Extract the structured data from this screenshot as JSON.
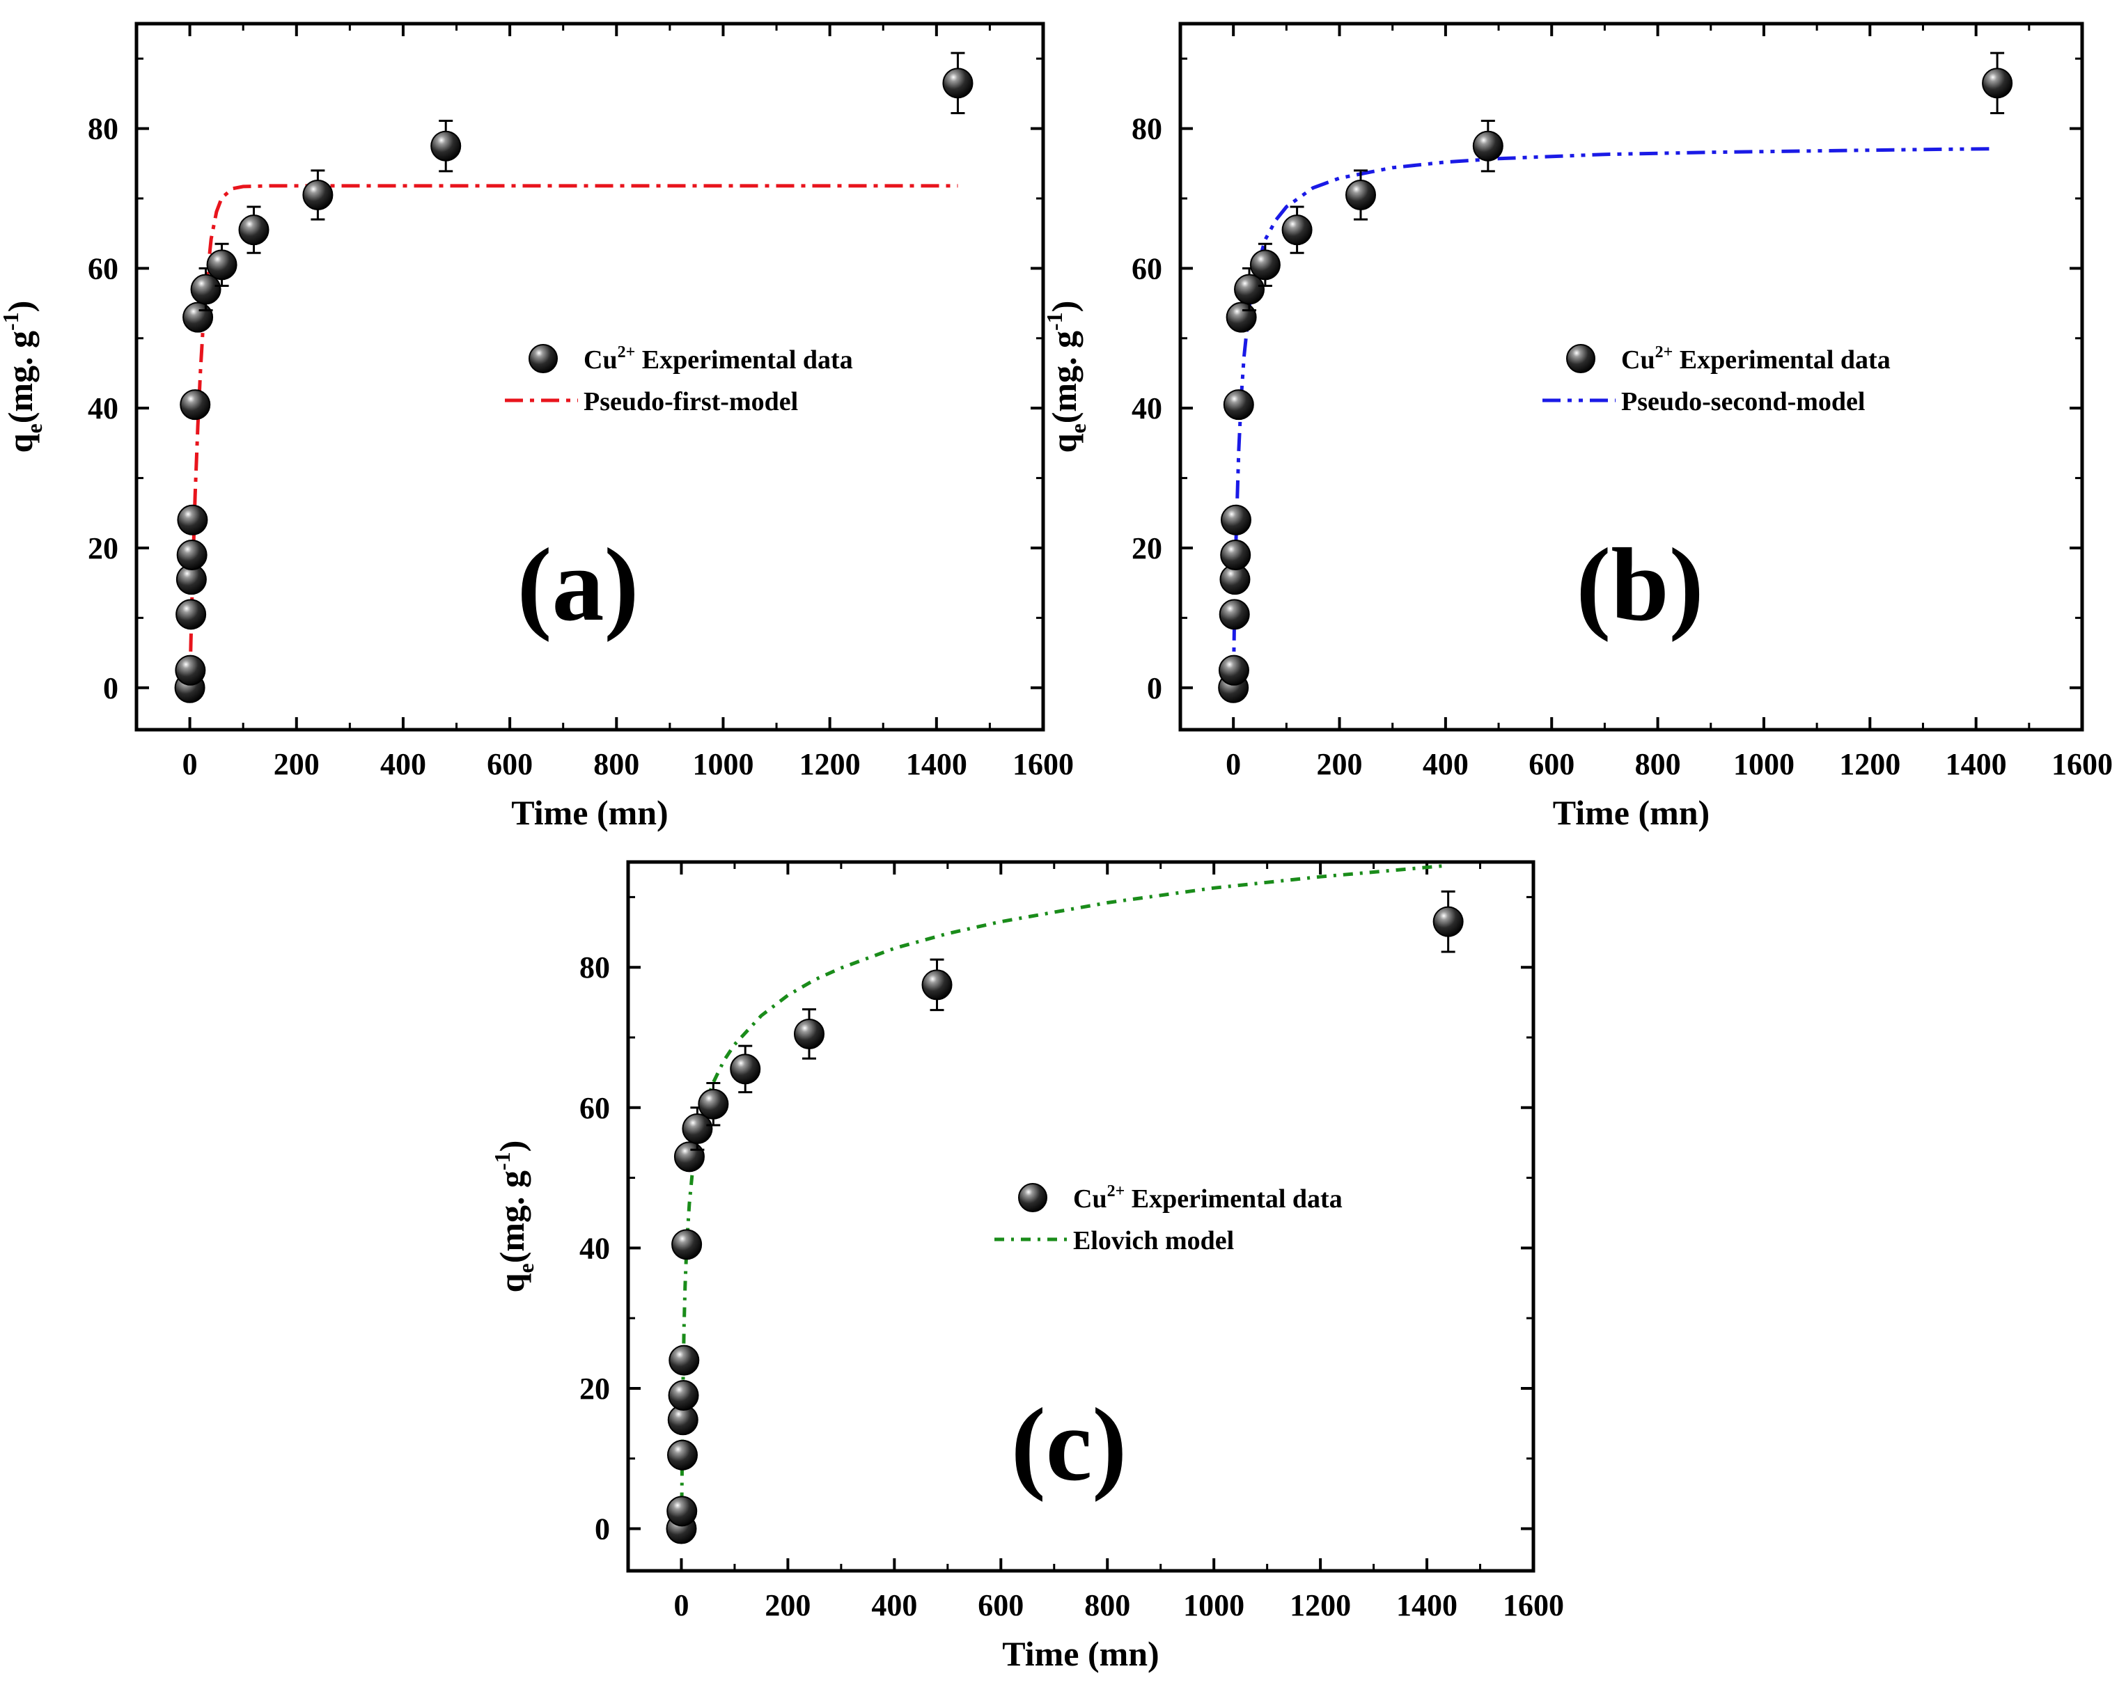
{
  "colors": {
    "fit_a": "#e8141c",
    "fit_b": "#1a1ae6",
    "fit_c": "#1a8c1a",
    "axis": "#000000",
    "marker": "#111111"
  },
  "chart_data": [
    {
      "type": "scatter",
      "panel_label": "(a)",
      "xlabel": "Time (mn)",
      "ylabel_main": "q",
      "ylabel_sub": "e",
      "ylabel_rest": "(mg. g",
      "ylabel_sup": "-1",
      "ylabel_close": ")",
      "xlim": [
        -100,
        1600
      ],
      "ylim": [
        -6,
        95
      ],
      "xticks": [
        0,
        200,
        400,
        600,
        800,
        1000,
        1200,
        1400,
        1600
      ],
      "yticks": [
        0,
        20,
        40,
        60,
        80
      ],
      "legend": {
        "scatter_label_main": "Cu",
        "scatter_label_sup": "2+",
        "scatter_label_rest": " Experimental data",
        "fit_label": "Pseudo-first-model"
      },
      "experimental": {
        "x": [
          0,
          1,
          2,
          3,
          4,
          5,
          10,
          15,
          30,
          60,
          120,
          240,
          480,
          1440
        ],
        "y": [
          0,
          2.5,
          10.5,
          15.5,
          19,
          24,
          40.5,
          53,
          57,
          60.5,
          65.5,
          70.5,
          77.5,
          86.5
        ],
        "error": [
          0,
          0,
          0,
          0,
          0,
          0,
          0,
          0,
          3,
          3,
          3.3,
          3.5,
          3.6,
          4.3
        ]
      },
      "fit": {
        "model": "pseudo-first-order",
        "x": [
          0,
          2,
          5,
          10,
          15,
          20,
          25,
          30,
          40,
          50,
          60,
          80,
          100,
          150,
          200,
          300,
          500,
          800,
          1100,
          1440
        ],
        "y": [
          0,
          6.5,
          15.3,
          27.6,
          37.5,
          45.4,
          51.8,
          56.9,
          64.2,
          68.1,
          70.1,
          71.4,
          71.7,
          71.8,
          71.8,
          71.8,
          71.8,
          71.8,
          71.8,
          71.8
        ]
      }
    },
    {
      "type": "scatter",
      "panel_label": "(b)",
      "xlabel": "Time (mn)",
      "ylabel_main": "q",
      "ylabel_sub": "e",
      "ylabel_rest": "(mg. g",
      "ylabel_sup": "-1",
      "ylabel_close": ")",
      "xlim": [
        -100,
        1600
      ],
      "ylim": [
        -6,
        95
      ],
      "xticks": [
        0,
        200,
        400,
        600,
        800,
        1000,
        1200,
        1400,
        1600
      ],
      "yticks": [
        0,
        20,
        40,
        60,
        80
      ],
      "legend": {
        "scatter_label_main": "Cu",
        "scatter_label_sup": "2+",
        "scatter_label_rest": " Experimental data",
        "fit_label": "Pseudo-second-model"
      },
      "experimental": {
        "x": [
          0,
          1,
          2,
          3,
          4,
          5,
          10,
          15,
          30,
          60,
          120,
          240,
          480,
          1440
        ],
        "y": [
          0,
          2.5,
          10.5,
          15.5,
          19,
          24,
          40.5,
          53,
          57,
          60.5,
          65.5,
          70.5,
          77.5,
          86.5
        ],
        "error": [
          0,
          0,
          0,
          0,
          0,
          0,
          0,
          0,
          3,
          3,
          3.3,
          3.5,
          3.6,
          4.3
        ]
      },
      "fit": {
        "model": "pseudo-second-order",
        "x": [
          0,
          2,
          5,
          10,
          15,
          20,
          30,
          40,
          60,
          80,
          100,
          150,
          200,
          300,
          400,
          500,
          700,
          900,
          1100,
          1300,
          1430
        ],
        "y": [
          0,
          10.4,
          21.3,
          33.8,
          41.8,
          47.3,
          54.5,
          58.9,
          64.1,
          66.9,
          68.8,
          71.5,
          72.9,
          74.4,
          75.2,
          75.7,
          76.3,
          76.6,
          76.8,
          77.0,
          77.1
        ]
      }
    },
    {
      "type": "scatter",
      "panel_label": "(c)",
      "xlabel": "Time (mn)",
      "ylabel_main": "q",
      "ylabel_sub": "e",
      "ylabel_rest": "(mg. g",
      "ylabel_sup": "-1",
      "ylabel_close": ")",
      "xlim": [
        -100,
        1600
      ],
      "ylim": [
        -6,
        95
      ],
      "xticks": [
        0,
        200,
        400,
        600,
        800,
        1000,
        1200,
        1400,
        1600
      ],
      "yticks": [
        0,
        20,
        40,
        60,
        80
      ],
      "legend": {
        "scatter_label_main": "Cu",
        "scatter_label_sup": "2+",
        "scatter_label_rest": " Experimental data",
        "fit_label": "Elovich model"
      },
      "experimental": {
        "x": [
          0,
          1,
          2,
          3,
          4,
          5,
          10,
          15,
          30,
          60,
          120,
          240,
          480,
          1440
        ],
        "y": [
          0,
          2.5,
          10.5,
          15.5,
          19,
          24,
          40.5,
          53,
          57,
          60.5,
          65.5,
          70.5,
          77.5,
          86.5
        ],
        "error": [
          0,
          0,
          0,
          0,
          0,
          0,
          0,
          0,
          3,
          3,
          3.3,
          3.5,
          3.6,
          4.3
        ]
      },
      "fit": {
        "model": "Elovich",
        "x": [
          0,
          1,
          2,
          3,
          5,
          7,
          10,
          15,
          20,
          30,
          45,
          60,
          80,
          100,
          150,
          200,
          250,
          300,
          400,
          500,
          600,
          800,
          1000,
          1200,
          1440
        ],
        "y": [
          0,
          5.5,
          13.9,
          20.2,
          28.9,
          34.5,
          40.3,
          46.3,
          50.3,
          55.6,
          60.4,
          63.6,
          66.7,
          69.0,
          73.1,
          76.0,
          78.2,
          79.9,
          82.7,
          84.8,
          86.5,
          89.2,
          91.3,
          92.9,
          94.5
        ]
      }
    }
  ]
}
